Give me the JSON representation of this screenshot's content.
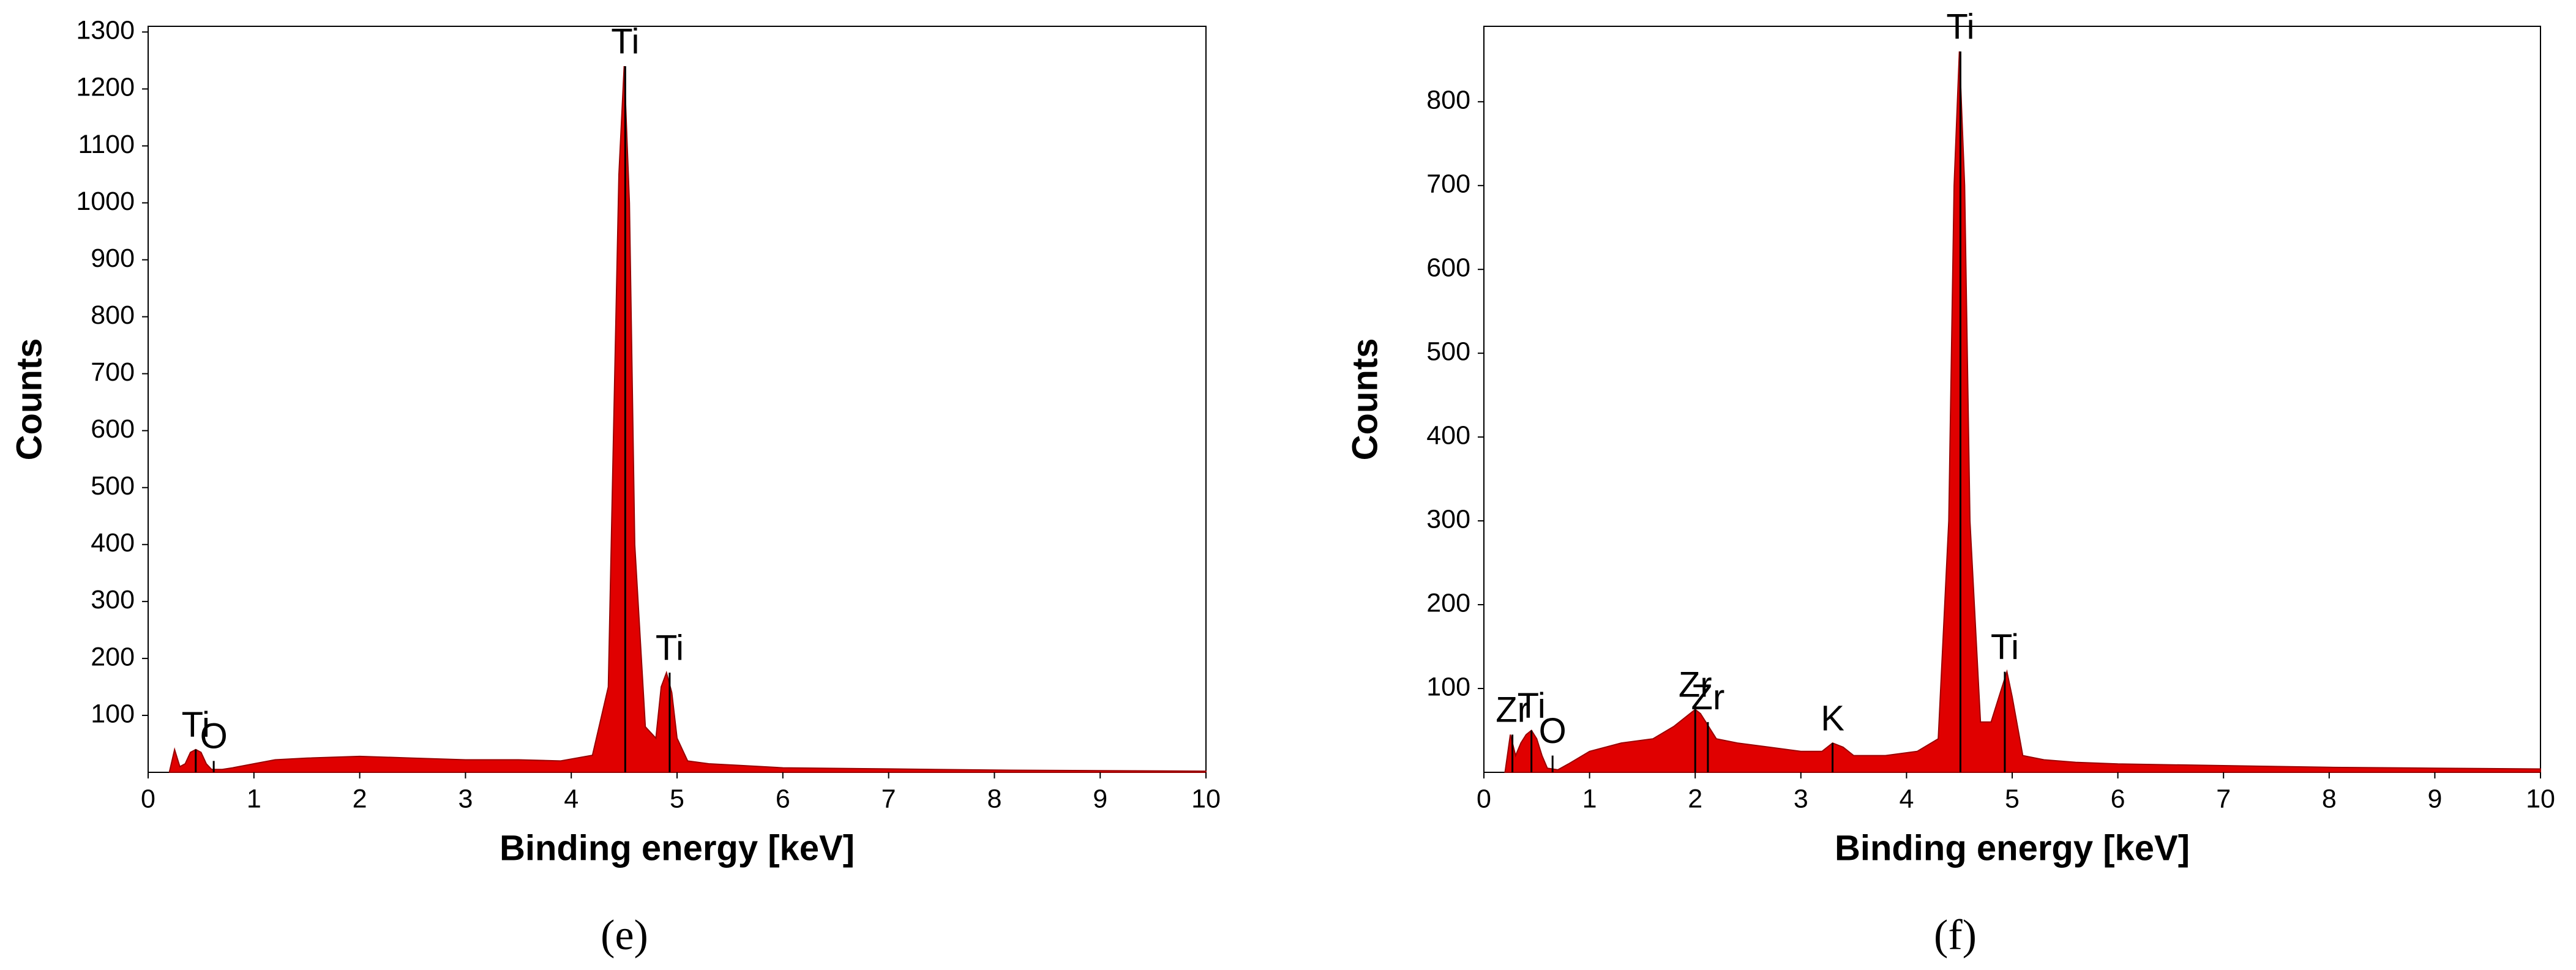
{
  "chart_data": [
    {
      "type": "area",
      "caption": "(e)",
      "x_label": "Binding energy [keV]",
      "y_label": "Counts",
      "xlim": [
        0,
        10
      ],
      "ylim": [
        0,
        1310
      ],
      "xticks": [
        0,
        1,
        2,
        3,
        4,
        5,
        6,
        7,
        8,
        9,
        10
      ],
      "yticks": [
        100,
        200,
        300,
        400,
        500,
        600,
        700,
        800,
        900,
        1000,
        1100,
        1200,
        1300
      ],
      "color": "#e00000",
      "x": [
        0.2,
        0.25,
        0.3,
        0.35,
        0.4,
        0.45,
        0.5,
        0.55,
        0.6,
        0.7,
        0.8,
        1.0,
        1.2,
        1.5,
        2.0,
        2.5,
        3.0,
        3.5,
        3.9,
        4.2,
        4.35,
        4.4,
        4.45,
        4.5,
        4.55,
        4.6,
        4.7,
        4.8,
        4.85,
        4.9,
        4.95,
        5.0,
        5.1,
        5.3,
        5.6,
        6,
        7,
        8,
        9,
        10
      ],
      "values": [
        0,
        40,
        10,
        15,
        35,
        40,
        35,
        15,
        5,
        5,
        8,
        15,
        22,
        25,
        28,
        25,
        22,
        22,
        20,
        30,
        150,
        600,
        1050,
        1240,
        1000,
        400,
        80,
        60,
        150,
        175,
        140,
        60,
        20,
        15,
        12,
        8,
        6,
        4,
        3,
        2
      ],
      "annotations": [
        {
          "text": "Ti",
          "x": 0.45,
          "y": 40
        },
        {
          "text": "O",
          "x": 0.62,
          "y": 20
        },
        {
          "text": "Ti",
          "x": 4.51,
          "y": 1240
        },
        {
          "text": "Ti",
          "x": 4.93,
          "y": 175
        }
      ]
    },
    {
      "type": "area",
      "caption": "(f)",
      "x_label": "Binding energy [keV]",
      "y_label": "Counts",
      "xlim": [
        0,
        10
      ],
      "ylim": [
        0,
        890
      ],
      "xticks": [
        0,
        1,
        2,
        3,
        4,
        5,
        6,
        7,
        8,
        9,
        10
      ],
      "yticks": [
        100,
        200,
        300,
        400,
        500,
        600,
        700,
        800
      ],
      "color": "#e00000",
      "x": [
        0.2,
        0.25,
        0.3,
        0.35,
        0.4,
        0.45,
        0.5,
        0.55,
        0.6,
        0.7,
        0.8,
        1.0,
        1.3,
        1.6,
        1.8,
        1.9,
        2.0,
        2.05,
        2.1,
        2.2,
        2.4,
        2.7,
        3.0,
        3.2,
        3.3,
        3.4,
        3.5,
        3.8,
        4.1,
        4.3,
        4.4,
        4.45,
        4.5,
        4.55,
        4.6,
        4.7,
        4.8,
        4.9,
        4.95,
        5.0,
        5.1,
        5.3,
        5.6,
        6,
        7,
        8,
        9,
        10
      ],
      "values": [
        0,
        45,
        20,
        35,
        45,
        50,
        40,
        20,
        5,
        3,
        10,
        25,
        35,
        40,
        55,
        65,
        75,
        70,
        60,
        40,
        35,
        30,
        25,
        25,
        35,
        30,
        20,
        20,
        25,
        40,
        300,
        700,
        860,
        700,
        300,
        60,
        60,
        100,
        120,
        90,
        20,
        15,
        12,
        10,
        8,
        6,
        5,
        4
      ],
      "annotations": [
        {
          "text": "Zr",
          "x": 0.27,
          "y": 45
        },
        {
          "text": "Ti",
          "x": 0.45,
          "y": 50
        },
        {
          "text": "O",
          "x": 0.65,
          "y": 20
        },
        {
          "text": "Zr",
          "x": 2.0,
          "y": 75
        },
        {
          "text": "Zr",
          "x": 2.12,
          "y": 60
        },
        {
          "text": "K",
          "x": 3.3,
          "y": 35
        },
        {
          "text": "Ti",
          "x": 4.51,
          "y": 860
        },
        {
          "text": "Ti",
          "x": 4.93,
          "y": 120
        }
      ]
    }
  ]
}
